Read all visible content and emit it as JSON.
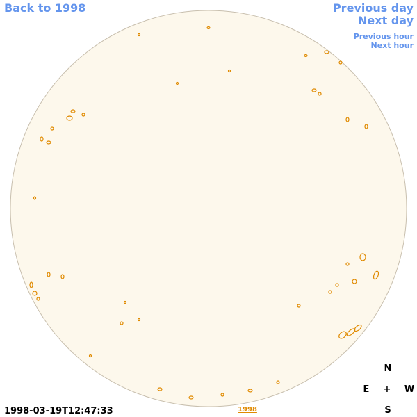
{
  "navigation": {
    "back": "Back to 1998",
    "previous_day": "Previous day",
    "next_day": "Next day",
    "previous_hour": "Previous hour",
    "next_hour": "Next hour"
  },
  "timestamp": "1998-03-19T12:47:33",
  "year_link": "1998",
  "compass": {
    "north": "N",
    "east": "E",
    "center": "+",
    "west": "W",
    "south": "S"
  }
}
